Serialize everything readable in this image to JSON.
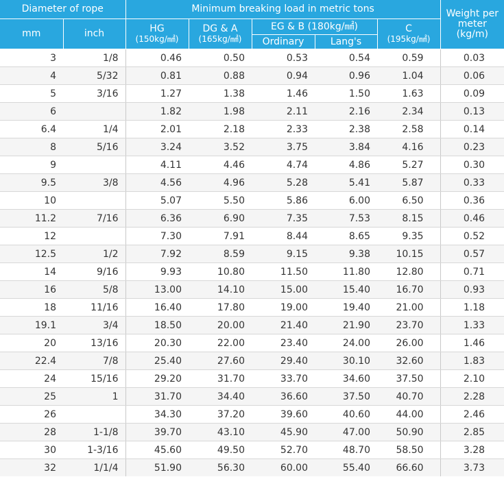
{
  "header": {
    "diameter_of_rope": "Diameter of rope",
    "min_breaking_load": "Minimum breaking load in metric tons",
    "weight_per_meter": "Weight per meter",
    "weight_unit": "(kg/m)",
    "mm": "mm",
    "inch": "inch",
    "hg": "HG",
    "hg_unit": "(150kg/㎟)",
    "dga": "DG & A",
    "dga_unit": "(165kg/㎟)",
    "egb": "EG & B (180kg/㎟)",
    "ordinary": "Ordinary",
    "langs": "Lang's",
    "c": "C",
    "c_unit": "(195kg/㎟)"
  },
  "rows": [
    {
      "mm": "3",
      "inch": "1/8",
      "hg": "0.46",
      "dga": "0.50",
      "ordinary": "0.53",
      "langs": "0.54",
      "c": "0.59",
      "weight": "0.03"
    },
    {
      "mm": "4",
      "inch": "5/32",
      "hg": "0.81",
      "dga": "0.88",
      "ordinary": "0.94",
      "langs": "0.96",
      "c": "1.04",
      "weight": "0.06"
    },
    {
      "mm": "5",
      "inch": "3/16",
      "hg": "1.27",
      "dga": "1.38",
      "ordinary": "1.46",
      "langs": "1.50",
      "c": "1.63",
      "weight": "0.09"
    },
    {
      "mm": "6",
      "inch": "",
      "hg": "1.82",
      "dga": "1.98",
      "ordinary": "2.11",
      "langs": "2.16",
      "c": "2.34",
      "weight": "0.13"
    },
    {
      "mm": "6.4",
      "inch": "1/4",
      "hg": "2.01",
      "dga": "2.18",
      "ordinary": "2.33",
      "langs": "2.38",
      "c": "2.58",
      "weight": "0.14"
    },
    {
      "mm": "8",
      "inch": "5/16",
      "hg": "3.24",
      "dga": "3.52",
      "ordinary": "3.75",
      "langs": "3.84",
      "c": "4.16",
      "weight": "0.23"
    },
    {
      "mm": "9",
      "inch": "",
      "hg": "4.11",
      "dga": "4.46",
      "ordinary": "4.74",
      "langs": "4.86",
      "c": "5.27",
      "weight": "0.30"
    },
    {
      "mm": "9.5",
      "inch": "3/8",
      "hg": "4.56",
      "dga": "4.96",
      "ordinary": "5.28",
      "langs": "5.41",
      "c": "5.87",
      "weight": "0.33"
    },
    {
      "mm": "10",
      "inch": "",
      "hg": "5.07",
      "dga": "5.50",
      "ordinary": "5.86",
      "langs": "6.00",
      "c": "6.50",
      "weight": "0.36"
    },
    {
      "mm": "11.2",
      "inch": "7/16",
      "hg": "6.36",
      "dga": "6.90",
      "ordinary": "7.35",
      "langs": "7.53",
      "c": "8.15",
      "weight": "0.46"
    },
    {
      "mm": "12",
      "inch": "",
      "hg": "7.30",
      "dga": "7.91",
      "ordinary": "8.44",
      "langs": "8.65",
      "c": "9.35",
      "weight": "0.52"
    },
    {
      "mm": "12.5",
      "inch": "1/2",
      "hg": "7.92",
      "dga": "8.59",
      "ordinary": "9.15",
      "langs": "9.38",
      "c": "10.15",
      "weight": "0.57"
    },
    {
      "mm": "14",
      "inch": "9/16",
      "hg": "9.93",
      "dga": "10.80",
      "ordinary": "11.50",
      "langs": "11.80",
      "c": "12.80",
      "weight": "0.71"
    },
    {
      "mm": "16",
      "inch": "5/8",
      "hg": "13.00",
      "dga": "14.10",
      "ordinary": "15.00",
      "langs": "15.40",
      "c": "16.70",
      "weight": "0.93"
    },
    {
      "mm": "18",
      "inch": "11/16",
      "hg": "16.40",
      "dga": "17.80",
      "ordinary": "19.00",
      "langs": "19.40",
      "c": "21.00",
      "weight": "1.18"
    },
    {
      "mm": "19.1",
      "inch": "3/4",
      "hg": "18.50",
      "dga": "20.00",
      "ordinary": "21.40",
      "langs": "21.90",
      "c": "23.70",
      "weight": "1.33"
    },
    {
      "mm": "20",
      "inch": "13/16",
      "hg": "20.30",
      "dga": "22.00",
      "ordinary": "23.40",
      "langs": "24.00",
      "c": "26.00",
      "weight": "1.46"
    },
    {
      "mm": "22.4",
      "inch": "7/8",
      "hg": "25.40",
      "dga": "27.60",
      "ordinary": "29.40",
      "langs": "30.10",
      "c": "32.60",
      "weight": "1.83"
    },
    {
      "mm": "24",
      "inch": "15/16",
      "hg": "29.20",
      "dga": "31.70",
      "ordinary": "33.70",
      "langs": "34.60",
      "c": "37.50",
      "weight": "2.10"
    },
    {
      "mm": "25",
      "inch": "1",
      "hg": "31.70",
      "dga": "34.40",
      "ordinary": "36.60",
      "langs": "37.50",
      "c": "40.70",
      "weight": "2.28"
    },
    {
      "mm": "26",
      "inch": "",
      "hg": "34.30",
      "dga": "37.20",
      "ordinary": "39.60",
      "langs": "40.60",
      "c": "44.00",
      "weight": "2.46"
    },
    {
      "mm": "28",
      "inch": "1-1/8",
      "hg": "39.70",
      "dga": "43.10",
      "ordinary": "45.90",
      "langs": "47.00",
      "c": "50.90",
      "weight": "2.85"
    },
    {
      "mm": "30",
      "inch": "1-3/16",
      "hg": "45.60",
      "dga": "49.50",
      "ordinary": "52.70",
      "langs": "48.70",
      "c": "58.50",
      "weight": "3.28"
    },
    {
      "mm": "32",
      "inch": "1/1/4",
      "hg": "51.90",
      "dga": "56.30",
      "ordinary": "60.00",
      "langs": "55.40",
      "c": "66.60",
      "weight": "3.73"
    }
  ],
  "colors": {
    "header_bg": "#29a7df",
    "header_text": "#ffffff",
    "row_stripe": "#f5f5f5",
    "text": "#333333"
  }
}
